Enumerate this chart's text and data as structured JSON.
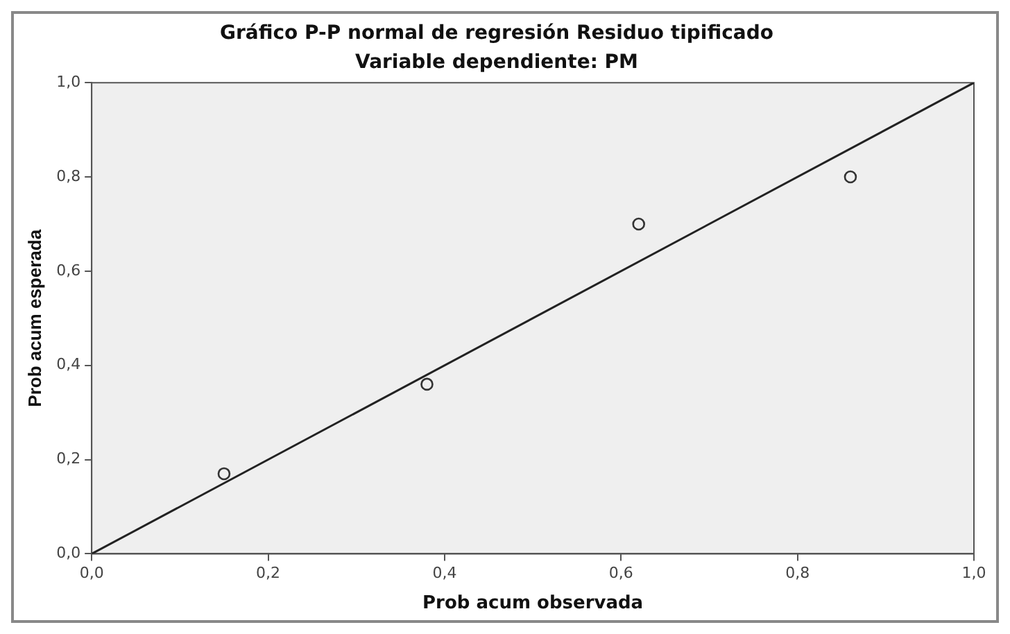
{
  "chart_data": {
    "type": "scatter",
    "title": "Gráfico P-P normal de regresión Residuo tipificado",
    "subtitle": "Variable dependiente: PM",
    "xlabel": "Prob acum observada",
    "ylabel": "Prob acum esperada",
    "series": [
      {
        "color": "#333333",
        "marker": "circle",
        "x": [
          0.15,
          0.38,
          0.62,
          0.86
        ],
        "values": [
          0.17,
          0.36,
          0.7,
          0.8
        ]
      },
      {
        "type": "line",
        "marker": "none",
        "color": "#222222",
        "x": [
          0,
          1
        ],
        "values": [
          0,
          1
        ]
      }
    ],
    "xlim": [
      0,
      1
    ],
    "ylim": [
      0,
      1
    ],
    "xticks": [
      {
        "value": 0,
        "label": "0,0"
      },
      {
        "value": 0.2,
        "label": "0,2"
      },
      {
        "value": 0.4,
        "label": "0,4"
      },
      {
        "value": 0.6,
        "label": "0,6"
      },
      {
        "value": 0.8,
        "label": "0,8"
      },
      {
        "value": 1,
        "label": "1,0"
      }
    ],
    "yticks": [
      {
        "value": 0,
        "label": "0,0"
      },
      {
        "value": 0.2,
        "label": "0,2"
      },
      {
        "value": 0.4,
        "label": "0,4"
      },
      {
        "value": 0.6,
        "label": "0,6"
      },
      {
        "value": 0.8,
        "label": "0,8"
      },
      {
        "value": 1,
        "label": "1,0"
      }
    ],
    "grid": false,
    "legend": false
  }
}
